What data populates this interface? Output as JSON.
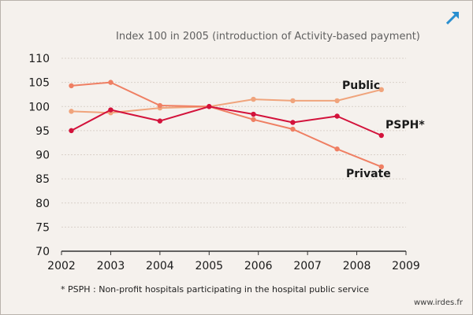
{
  "colors": {
    "background": "#f5f1ed",
    "grid": "#d9d1c9",
    "public": "#f0a47c",
    "private": "#ef7f63",
    "psph": "#d3123b",
    "expand_icon": "#2a8fd0"
  },
  "header": {
    "expand_icon": "expand-arrow-icon"
  },
  "chart_data": {
    "type": "line",
    "title": "Index 100 in 2005 (introduction of Activity-based payment)",
    "xlabel": "",
    "ylabel": "",
    "x_ticks": [
      2002,
      2003,
      2004,
      2005,
      2006,
      2007,
      2008,
      2009
    ],
    "y_ticks": [
      70,
      75,
      80,
      85,
      90,
      95,
      100,
      105,
      110
    ],
    "xlim": [
      2002,
      2009
    ],
    "ylim": [
      70,
      110
    ],
    "grid": "horizontal dotted",
    "series": [
      {
        "name": "Public",
        "color": "#f0a47c",
        "x": [
          2002.2,
          2003.0,
          2004.0,
          2005.0,
          2005.9,
          2006.7,
          2007.6,
          2008.5
        ],
        "y": [
          99.0,
          98.7,
          99.7,
          100.0,
          101.5,
          101.2,
          101.2,
          103.5
        ]
      },
      {
        "name": "Private",
        "color": "#ef7f63",
        "x": [
          2002.2,
          2003.0,
          2004.0,
          2005.0,
          2005.9,
          2006.7,
          2007.6,
          2008.5
        ],
        "y": [
          104.3,
          105.0,
          100.2,
          100.0,
          97.3,
          95.3,
          91.2,
          87.5
        ]
      },
      {
        "name": "PSPH*",
        "color": "#d3123b",
        "x": [
          2002.2,
          2003.0,
          2004.0,
          2005.0,
          2005.9,
          2006.7,
          2007.6,
          2008.5
        ],
        "y": [
          95.0,
          99.3,
          97.0,
          100.0,
          98.4,
          96.7,
          98.0,
          94.0
        ]
      }
    ]
  },
  "footnote": "* PSPH : Non-profit hospitals participating in the hospital public service",
  "source": "www.irdes.fr"
}
